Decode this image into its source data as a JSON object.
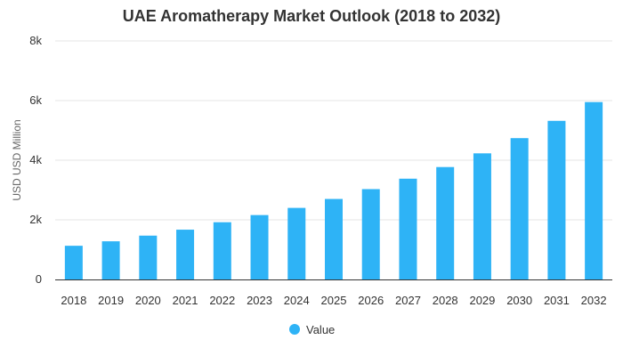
{
  "chart_data": {
    "type": "bar",
    "title": "UAE Aromatherapy Market Outlook (2018 to 2032)",
    "xlabel": "",
    "ylabel": "USD USD Million",
    "categories": [
      "2018",
      "2019",
      "2020",
      "2021",
      "2022",
      "2023",
      "2024",
      "2025",
      "2026",
      "2027",
      "2028",
      "2029",
      "2030",
      "2031",
      "2032"
    ],
    "series": [
      {
        "name": "Value",
        "values": [
          1130,
          1280,
          1470,
          1670,
          1920,
          2160,
          2400,
          2700,
          3030,
          3380,
          3770,
          4230,
          4740,
          5320,
          5950
        ]
      }
    ],
    "ylim": [
      0,
      8000
    ],
    "yticks": [
      {
        "value": 0,
        "label": "0"
      },
      {
        "value": 2000,
        "label": "2k"
      },
      {
        "value": 4000,
        "label": "4k"
      },
      {
        "value": 6000,
        "label": "6k"
      },
      {
        "value": 8000,
        "label": "8k"
      }
    ],
    "grid": true,
    "legend": "bottom-center",
    "colors": {
      "bar": "#2eb3f6"
    }
  }
}
